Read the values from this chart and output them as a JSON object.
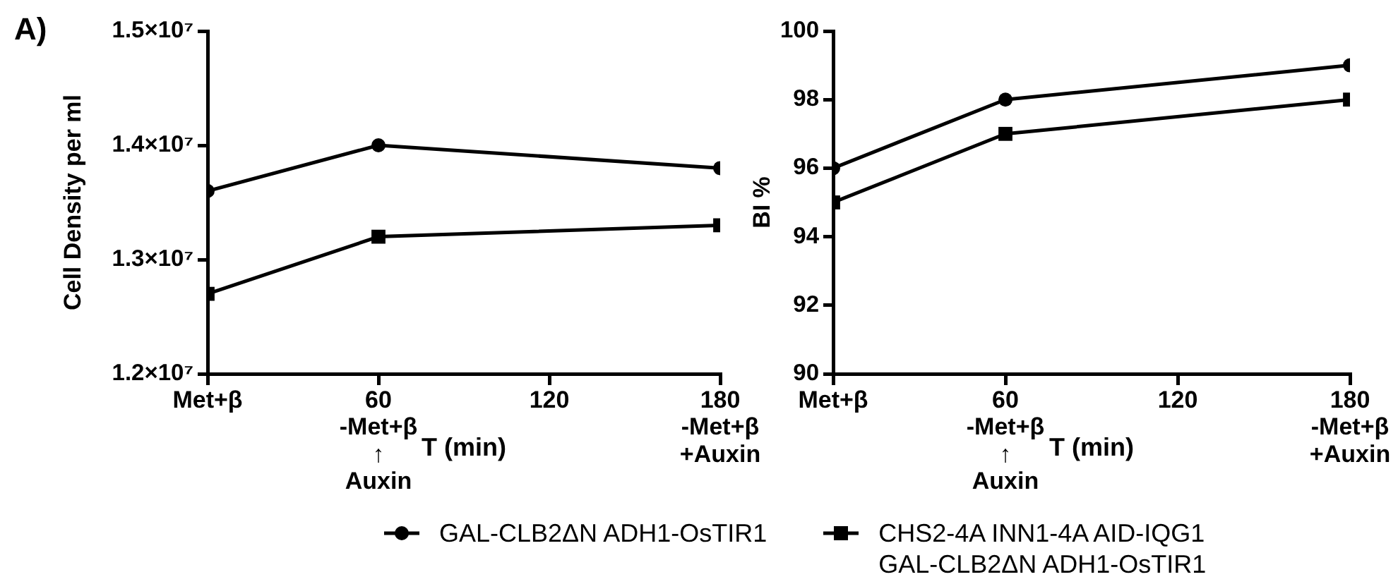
{
  "chart_data": [
    {
      "type": "line",
      "annotations": [
        "A)"
      ],
      "xlabel": "T (min)",
      "ylabel": "Cell Density per ml",
      "x": [
        0,
        60,
        180
      ],
      "series": [
        {
          "name": "GAL-CLB2ΔN ADH1-OsTIR1",
          "color": "#000000",
          "marker": "circle",
          "values": [
            13600000,
            14000000,
            13800000
          ]
        },
        {
          "name": "CHS2-4A INN1-4A AID-IQG1 GAL-CLB2ΔN ADH1-OsTIR1",
          "color": "#000000",
          "marker": "square",
          "values": [
            12700000,
            13200000,
            13300000
          ]
        }
      ],
      "xlim": [
        0,
        180
      ],
      "xticks": [
        {
          "value": 0,
          "label": "Met+β"
        },
        {
          "value": 60,
          "label": "60\n-Met+β\n↑\nAuxin"
        },
        120,
        {
          "value": 180,
          "label": "180\n-Met+β\n+Auxin"
        }
      ],
      "ylim": [
        12000000,
        15000000
      ],
      "yticks": [
        {
          "value": 12000000,
          "label": "1.2×10⁷"
        },
        {
          "value": 13000000,
          "label": "1.3×10⁷"
        },
        {
          "value": 14000000,
          "label": "1.4×10⁷"
        },
        {
          "value": 15000000,
          "label": "1.5×10⁷"
        }
      ],
      "grid": false,
      "legend": "bottom"
    },
    {
      "type": "line",
      "xlabel": "T (min)",
      "ylabel": "BI %",
      "x": [
        0,
        60,
        180
      ],
      "series": [
        {
          "color": "#000000",
          "marker": "circle",
          "values": [
            96,
            98,
            99
          ]
        },
        {
          "color": "#000000",
          "marker": "square",
          "values": [
            95,
            97,
            98
          ]
        }
      ],
      "xlim": [
        0,
        180
      ],
      "xticks": [
        {
          "value": 0,
          "label": "Met+β"
        },
        {
          "value": 60,
          "label": "60\n-Met+β\n↑\nAuxin"
        },
        120,
        {
          "value": 180,
          "label": "180\n-Met+β\n+Auxin"
        }
      ],
      "ylim": [
        90,
        100
      ],
      "yticks": [
        90,
        92,
        94,
        96,
        98,
        100
      ],
      "grid": false
    }
  ]
}
